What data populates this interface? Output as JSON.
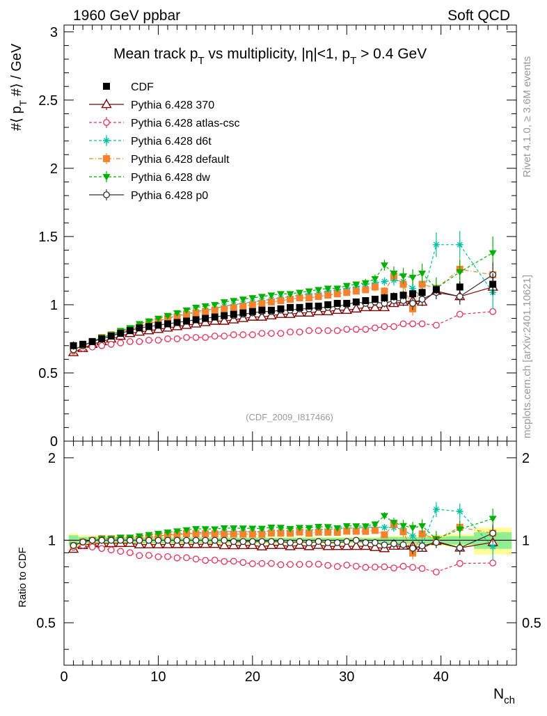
{
  "header": {
    "left": "1960 GeV ppbar",
    "right": "Soft QCD"
  },
  "side_labels": {
    "top": "Rivet 4.1.0, ≥ 3.6M events",
    "bottom": "mcplots.cern.ch [arXiv:2401.10621]"
  },
  "chart_data": {
    "type": "scatter",
    "title": "Mean track p_T vs multiplicity, |η|<1, p_T > 0.4 GeV",
    "ylabel": "#⟨ p_T #⟩ / GeV",
    "xlabel": "N_ch",
    "ratio_ylabel": "Ratio to CDF",
    "watermark": "(CDF_2009_I817466)",
    "xlim": [
      0,
      48
    ],
    "ylim": [
      0,
      3.05
    ],
    "ratio_ylim": [
      0.35,
      2.3
    ],
    "main_yticks": [
      {
        "v": 0.5,
        "label": "0.5"
      },
      {
        "v": 1,
        "label": "1"
      },
      {
        "v": 1.5,
        "label": "1.5"
      },
      {
        "v": 2,
        "label": "2"
      },
      {
        "v": 2.5,
        "label": "2.5"
      },
      {
        "v": 3,
        "label": "3"
      }
    ],
    "main_zero_label": "0",
    "ratio_yticks": [
      {
        "v": 0.5,
        "label": "0.5"
      },
      {
        "v": 1,
        "label": "1"
      },
      {
        "v": 2,
        "label": "2"
      }
    ],
    "xticks": [
      {
        "v": 0,
        "label": "0"
      },
      {
        "v": 10,
        "label": "10"
      },
      {
        "v": 20,
        "label": "20"
      },
      {
        "v": 30,
        "label": "30"
      },
      {
        "v": 40,
        "label": "40"
      }
    ],
    "x": [
      1,
      2,
      3,
      4,
      5,
      6,
      7,
      8,
      9,
      10,
      11,
      12,
      13,
      14,
      15,
      16,
      17,
      18,
      19,
      20,
      21,
      22,
      23,
      24,
      25,
      26,
      27,
      28,
      29,
      30,
      31,
      32,
      33,
      34,
      35,
      36,
      37,
      38,
      39.5,
      42,
      45.5
    ],
    "reference": {
      "name": "CDF",
      "color": "#000000",
      "values": [
        0.7,
        0.71,
        0.73,
        0.75,
        0.77,
        0.79,
        0.81,
        0.83,
        0.84,
        0.85,
        0.86,
        0.87,
        0.88,
        0.89,
        0.9,
        0.91,
        0.92,
        0.93,
        0.94,
        0.95,
        0.96,
        0.96,
        0.97,
        0.98,
        0.98,
        0.99,
        0.99,
        1.0,
        1.01,
        1.01,
        1.02,
        1.03,
        1.04,
        1.05,
        1.06,
        1.07,
        1.08,
        1.09,
        1.11,
        1.13,
        1.15
      ],
      "band_inner": [
        0.03,
        0.02,
        0.02,
        0.02,
        0.02,
        0.02,
        0.02,
        0.02,
        0.02,
        0.02,
        0.02,
        0.02,
        0.02,
        0.02,
        0.02,
        0.02,
        0.02,
        0.02,
        0.02,
        0.02,
        0.02,
        0.02,
        0.02,
        0.02,
        0.02,
        0.02,
        0.02,
        0.02,
        0.02,
        0.02,
        0.02,
        0.02,
        0.02,
        0.03,
        0.03,
        0.03,
        0.03,
        0.03,
        0.03,
        0.04,
        0.08
      ],
      "band_outer": [
        0.04,
        0.03,
        0.03,
        0.03,
        0.03,
        0.03,
        0.03,
        0.03,
        0.03,
        0.03,
        0.03,
        0.03,
        0.03,
        0.03,
        0.03,
        0.03,
        0.03,
        0.03,
        0.03,
        0.03,
        0.03,
        0.03,
        0.03,
        0.03,
        0.03,
        0.03,
        0.03,
        0.03,
        0.03,
        0.03,
        0.03,
        0.03,
        0.03,
        0.04,
        0.04,
        0.04,
        0.04,
        0.05,
        0.05,
        0.06,
        0.13
      ]
    },
    "series": [
      {
        "name": "Pythia 6.428 370",
        "color": "#800000",
        "marker": "triangle-open",
        "dash": "",
        "values": [
          0.65,
          0.68,
          0.71,
          0.73,
          0.75,
          0.77,
          0.79,
          0.8,
          0.81,
          0.82,
          0.83,
          0.84,
          0.85,
          0.86,
          0.87,
          0.88,
          0.88,
          0.89,
          0.9,
          0.91,
          0.91,
          0.92,
          0.93,
          0.93,
          0.94,
          0.94,
          0.95,
          0.95,
          0.96,
          0.96,
          0.97,
          0.98,
          0.98,
          0.98,
          1.01,
          1.02,
          1.03,
          1.02,
          1.1,
          1.06,
          1.13
        ],
        "errors": [
          0,
          0,
          0,
          0,
          0,
          0,
          0,
          0,
          0,
          0,
          0,
          0,
          0,
          0,
          0,
          0,
          0,
          0,
          0,
          0,
          0,
          0,
          0,
          0,
          0,
          0,
          0,
          0,
          0,
          0,
          0,
          0,
          0,
          0,
          0.02,
          0.02,
          0.03,
          0.03,
          0.03,
          0.04,
          0.06
        ]
      },
      {
        "name": "Pythia 6.428 atlas-csc",
        "color": "#e0305a",
        "marker": "circle-open",
        "dash": "4,3",
        "values": [
          0.66,
          0.68,
          0.69,
          0.7,
          0.71,
          0.72,
          0.73,
          0.73,
          0.74,
          0.74,
          0.75,
          0.75,
          0.76,
          0.76,
          0.76,
          0.77,
          0.77,
          0.78,
          0.78,
          0.78,
          0.79,
          0.79,
          0.79,
          0.8,
          0.8,
          0.81,
          0.81,
          0.81,
          0.81,
          0.82,
          0.82,
          0.82,
          0.83,
          0.84,
          0.84,
          0.86,
          0.86,
          0.86,
          0.85,
          0.93,
          0.95
        ],
        "errors": [
          0,
          0,
          0,
          0,
          0,
          0,
          0,
          0,
          0,
          0,
          0,
          0,
          0,
          0,
          0,
          0,
          0,
          0,
          0,
          0,
          0,
          0,
          0,
          0,
          0,
          0,
          0,
          0,
          0,
          0,
          0,
          0,
          0,
          0,
          0,
          0,
          0,
          0,
          0,
          0,
          0
        ]
      },
      {
        "name": "Pythia 6.428 d6t",
        "color": "#00c0a0",
        "marker": "star",
        "dash": "4,3",
        "values": [
          0.67,
          0.7,
          0.73,
          0.75,
          0.77,
          0.8,
          0.82,
          0.84,
          0.86,
          0.88,
          0.9,
          0.92,
          0.93,
          0.95,
          0.96,
          0.97,
          0.99,
          1.0,
          1.01,
          1.02,
          1.03,
          1.04,
          1.05,
          1.06,
          1.07,
          1.08,
          1.08,
          1.1,
          1.11,
          1.12,
          1.13,
          1.15,
          1.16,
          1.17,
          1.18,
          1.17,
          1.12,
          1.05,
          1.44,
          1.44,
          1.09
        ],
        "errors": [
          0,
          0,
          0,
          0,
          0,
          0,
          0,
          0,
          0,
          0,
          0,
          0,
          0,
          0,
          0,
          0,
          0,
          0,
          0,
          0,
          0,
          0,
          0,
          0,
          0,
          0,
          0,
          0,
          0,
          0,
          0.02,
          0.02,
          0.03,
          0.03,
          0.04,
          0.05,
          0.05,
          0.06,
          0.09,
          0.1,
          0.12
        ]
      },
      {
        "name": "Pythia 6.428 default",
        "color": "#f5822f",
        "marker": "square",
        "dash": "6,3,1,3",
        "values": [
          0.67,
          0.7,
          0.73,
          0.76,
          0.78,
          0.8,
          0.82,
          0.84,
          0.86,
          0.88,
          0.9,
          0.91,
          0.93,
          0.94,
          0.95,
          0.96,
          0.97,
          0.98,
          0.99,
          1.0,
          1.01,
          1.02,
          1.03,
          1.04,
          1.05,
          1.05,
          1.06,
          1.07,
          1.08,
          1.09,
          1.1,
          1.11,
          1.13,
          1.1,
          1.21,
          1.15,
          0.97,
          1.15,
          1.12,
          1.26,
          1.22
        ],
        "errors": [
          0,
          0,
          0,
          0,
          0,
          0,
          0,
          0,
          0,
          0,
          0,
          0,
          0,
          0,
          0,
          0,
          0,
          0,
          0,
          0,
          0,
          0,
          0,
          0,
          0,
          0,
          0,
          0,
          0,
          0,
          0.02,
          0.02,
          0.03,
          0.03,
          0.04,
          0.05,
          0.05,
          0.05,
          0.06,
          0.08,
          0.1
        ]
      },
      {
        "name": "Pythia 6.428 dw",
        "color": "#00b000",
        "marker": "triangle-down",
        "dash": "4,3",
        "values": [
          0.67,
          0.7,
          0.73,
          0.76,
          0.78,
          0.81,
          0.83,
          0.86,
          0.88,
          0.9,
          0.92,
          0.94,
          0.96,
          0.98,
          0.99,
          1.0,
          1.02,
          1.03,
          1.04,
          1.05,
          1.06,
          1.07,
          1.08,
          1.08,
          1.09,
          1.1,
          1.11,
          1.12,
          1.12,
          1.14,
          1.15,
          1.16,
          1.19,
          1.29,
          1.23,
          1.21,
          1.2,
          1.23,
          1.12,
          1.24,
          1.38
        ],
        "errors": [
          0,
          0,
          0,
          0,
          0,
          0,
          0,
          0,
          0,
          0,
          0,
          0,
          0,
          0,
          0,
          0,
          0,
          0,
          0,
          0,
          0,
          0,
          0,
          0,
          0,
          0,
          0,
          0,
          0,
          0,
          0.02,
          0.03,
          0.03,
          0.04,
          0.05,
          0.06,
          0.06,
          0.07,
          0.08,
          0.09,
          0.12
        ]
      },
      {
        "name": "Pythia 6.428 p0",
        "color": "#303030",
        "marker": "circle-open",
        "dash": "",
        "values": [
          0.67,
          0.7,
          0.73,
          0.75,
          0.77,
          0.79,
          0.81,
          0.83,
          0.84,
          0.85,
          0.86,
          0.87,
          0.88,
          0.89,
          0.9,
          0.91,
          0.92,
          0.92,
          0.93,
          0.94,
          0.95,
          0.95,
          0.96,
          0.96,
          0.97,
          0.97,
          0.98,
          0.98,
          0.99,
          1.0,
          1.02,
          1.01,
          1.02,
          1.01,
          1.03,
          1.03,
          1.01,
          1.04,
          1.09,
          1.06,
          1.22
        ],
        "errors": [
          0,
          0,
          0,
          0,
          0,
          0,
          0,
          0,
          0,
          0,
          0,
          0,
          0,
          0,
          0,
          0,
          0,
          0,
          0,
          0,
          0,
          0,
          0,
          0,
          0,
          0,
          0,
          0,
          0,
          0,
          0.02,
          0.02,
          0.03,
          0.03,
          0.04,
          0.04,
          0.05,
          0.05,
          0.05,
          0.06,
          0.09
        ]
      }
    ]
  }
}
